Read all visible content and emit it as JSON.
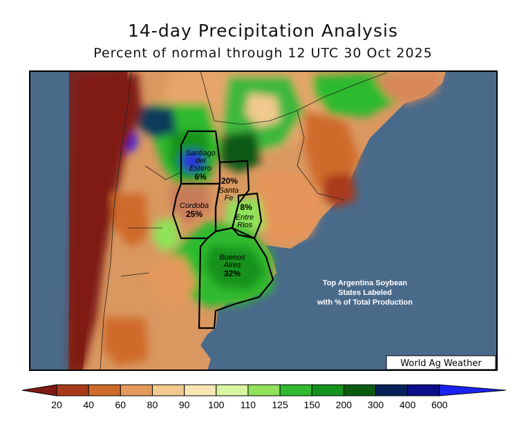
{
  "title": "14-day Precipitation Analysis",
  "subtitle": "Percent of normal through 12 UTC 30 Oct 2025",
  "note": {
    "line1": "Top Argentina Soybean",
    "line2": "States Labeled",
    "line3": "with % of Total Production"
  },
  "brand": "World Ag Weather",
  "states": [
    {
      "name_line1": "Santiago",
      "name_line2": "del",
      "name_line3": "Estero",
      "pct": "6%"
    },
    {
      "name_line1": "Santa",
      "name_line2": "Fe",
      "pct": "20%"
    },
    {
      "name_line1": "Cordoba",
      "pct": "25%"
    },
    {
      "name_line1": "Entre",
      "name_line2": "Rios",
      "pct": "8%"
    },
    {
      "name_line1": "Buenos",
      "name_line2": "Aires",
      "pct": "32%"
    }
  ],
  "legend": {
    "ticks": [
      "20",
      "40",
      "60",
      "80",
      "90",
      "100",
      "110",
      "125",
      "150",
      "200",
      "300",
      "400",
      "600"
    ],
    "colors": [
      "#7f1b12",
      "#a83a1a",
      "#cf6a2a",
      "#e39a5c",
      "#f2c98e",
      "#f7e6b3",
      "#d7f5a0",
      "#8fe25a",
      "#2fba2f",
      "#14921d",
      "#0a5a12",
      "#08205a",
      "#0c0e8a",
      "#1a22f0"
    ]
  },
  "colors": {
    "ocean": "#4a6a8a"
  }
}
